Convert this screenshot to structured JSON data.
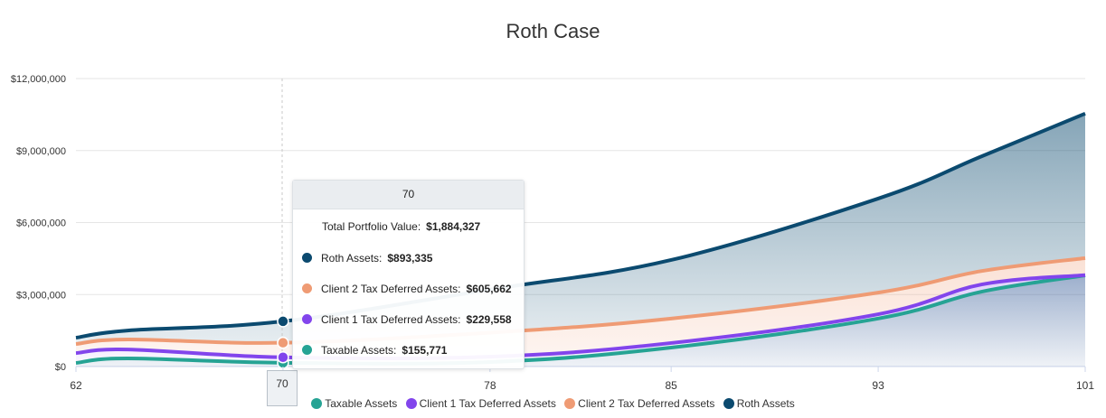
{
  "chart_data": {
    "type": "area",
    "stacked": true,
    "title": "Roth Case",
    "xlabel": "",
    "ylabel": "",
    "x": [
      62,
      64,
      70,
      78,
      85,
      93,
      97,
      101
    ],
    "x_ticks": [
      "62",
      "70",
      "78",
      "85",
      "93",
      "101"
    ],
    "y_ticks": [
      "$0",
      "$3,000,000",
      "$6,000,000",
      "$9,000,000",
      "$12,000,000"
    ],
    "ylim": [
      0,
      12000000
    ],
    "xlim": [
      62,
      101
    ],
    "grid": "horizontal",
    "legend_position": "bottom",
    "series": [
      {
        "name": "Taxable Assets",
        "color": "#26a394",
        "values": [
          150000,
          340000,
          155771,
          190000,
          790000,
          2000000,
          3120000,
          3800000
        ]
      },
      {
        "name": "Client 1 Tax Deferred Assets",
        "color": "#8245ec",
        "values": [
          410000,
          370000,
          229558,
          220000,
          190000,
          180000,
          300000,
          10000
        ]
      },
      {
        "name": "Client 2 Tax Deferred Assets",
        "color": "#ef9b74",
        "values": [
          380000,
          420000,
          605662,
          1000000,
          1020000,
          900000,
          560000,
          710000
        ]
      },
      {
        "name": "Roth Assets",
        "color": "#0b4a6f",
        "values": [
          260000,
          370000,
          893335,
          1800000,
          2440000,
          3920000,
          4780000,
          6020000
        ]
      }
    ]
  },
  "tooltip": {
    "header": "70",
    "total_label": "Total Portfolio Value:",
    "total_value": "$1,884,327",
    "rows": [
      {
        "label": "Roth Assets:",
        "value": "$893,335",
        "color": "#0b4a6f"
      },
      {
        "label": "Client 2 Tax Deferred Assets:",
        "value": "$605,662",
        "color": "#ef9b74"
      },
      {
        "label": "Client 1 Tax Deferred Assets:",
        "value": "$229,558",
        "color": "#8245ec"
      },
      {
        "label": "Taxable Assets:",
        "value": "$155,771",
        "color": "#26a394"
      }
    ]
  },
  "hover_x_label": "70",
  "hover_x": 70
}
